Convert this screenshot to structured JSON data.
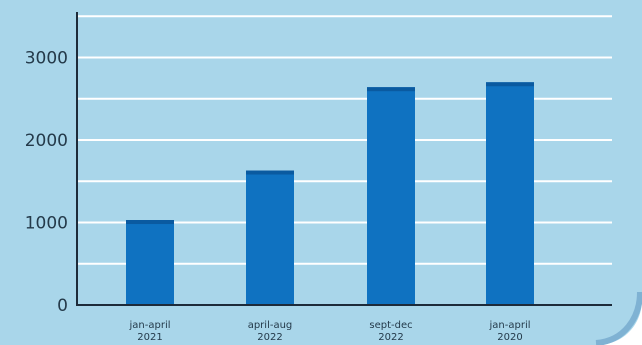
{
  "colors": {
    "panel_bg": "#a9d6ea",
    "bar": "#0f72c1",
    "bar_top": "#0a5aa0",
    "gridline": "#ffffff",
    "axis": "#1d2b3a",
    "text": "#243a4a",
    "outer_bg": "#ffffff",
    "edge_accent": "#7fb2d3"
  },
  "chart_data": {
    "type": "bar",
    "categories": [
      [
        "jan-april",
        "2021"
      ],
      [
        "april-aug",
        "2022"
      ],
      [
        "sept-dec",
        "2022"
      ],
      [
        "jan-april",
        "2020"
      ]
    ],
    "values": [
      1030,
      1630,
      2640,
      2700
    ],
    "ylim": [
      0,
      3600
    ],
    "yticks": [
      0,
      1000,
      2000,
      3000
    ],
    "grid": true,
    "title": "",
    "xlabel": "",
    "ylabel": ""
  }
}
